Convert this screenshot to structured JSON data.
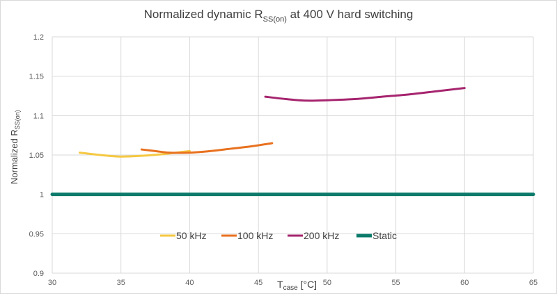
{
  "chart_data": {
    "type": "line",
    "title": "Normalized dynamic R",
    "title_sub": "SS(on)",
    "title_suffix": " at 400 V hard switching",
    "xlabel": "T",
    "xlabel_sub": "case",
    "xlabel_suffix": " [°C]",
    "ylabel": "Normalized R",
    "ylabel_sub": "SS(on)",
    "xlim": [
      30,
      65
    ],
    "ylim": [
      0.9,
      1.2
    ],
    "xticks": [
      "30",
      "35",
      "40",
      "45",
      "50",
      "55",
      "60",
      "65"
    ],
    "yticks": [
      "0.9",
      "0.95",
      "1",
      "1.05",
      "1.1",
      "1.15",
      "1.2"
    ],
    "grid": true,
    "legend_position": "center-bottom",
    "series": [
      {
        "name": "50 kHz",
        "color": "#f5c842",
        "points": [
          [
            32,
            1.053
          ],
          [
            33.5,
            1.05
          ],
          [
            35,
            1.048
          ],
          [
            36.5,
            1.049
          ],
          [
            38,
            1.051
          ],
          [
            39,
            1.053
          ],
          [
            40,
            1.055
          ]
        ]
      },
      {
        "name": "100 kHz",
        "color": "#e8711f",
        "points": [
          [
            36.5,
            1.057
          ],
          [
            37.5,
            1.055
          ],
          [
            38.5,
            1.053
          ],
          [
            40,
            1.053
          ],
          [
            41.5,
            1.055
          ],
          [
            43,
            1.058
          ],
          [
            44.5,
            1.061
          ],
          [
            46,
            1.065
          ]
        ]
      },
      {
        "name": "200 kHz",
        "color": "#a6246e",
        "points": [
          [
            45.5,
            1.124
          ],
          [
            47,
            1.121
          ],
          [
            48.5,
            1.119
          ],
          [
            50,
            1.1195
          ],
          [
            52,
            1.121
          ],
          [
            54,
            1.124
          ],
          [
            56,
            1.127
          ],
          [
            58,
            1.131
          ],
          [
            60,
            1.135
          ]
        ]
      },
      {
        "name": "Static",
        "color": "#0b7a6b",
        "points": [
          [
            30,
            1.0
          ],
          [
            65,
            1.0
          ]
        ]
      }
    ]
  }
}
